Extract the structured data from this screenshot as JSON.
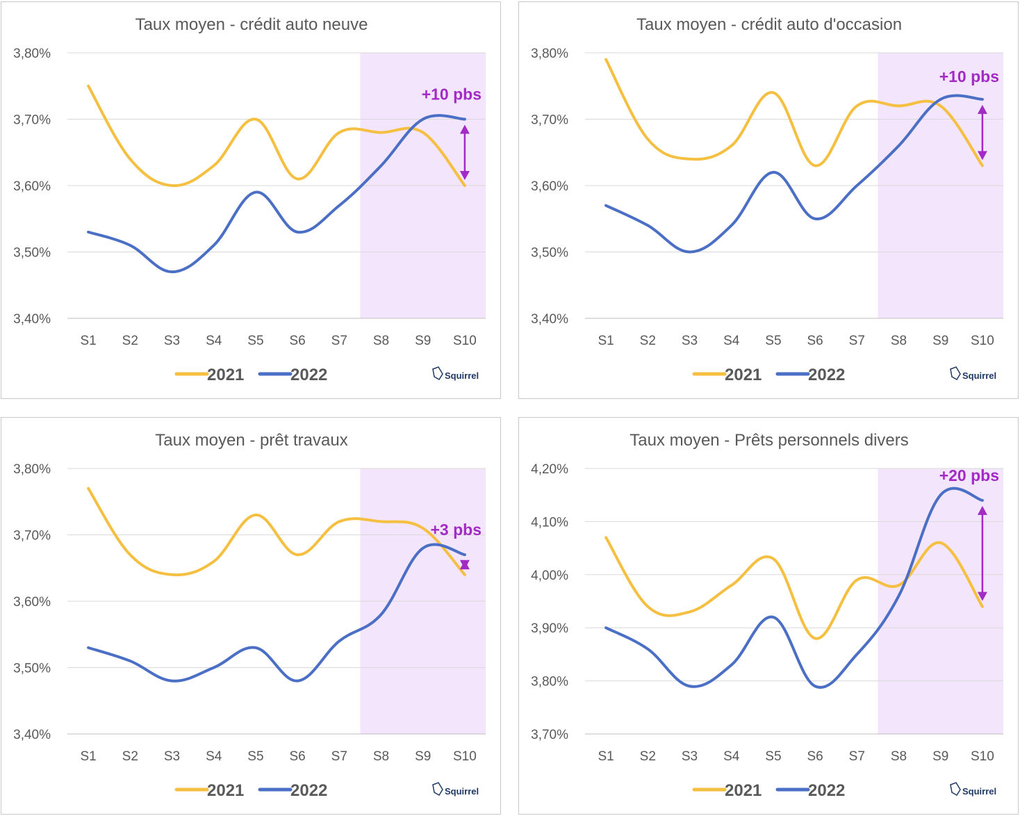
{
  "brand": "Squirrel",
  "colors": {
    "y2021": "#f5bf42",
    "y2022": "#4a6fc4",
    "highlight": "#f3e5fb",
    "annotation": "#a12bc4",
    "grid": "#d9d9d9",
    "text": "#595959"
  },
  "chart_data": [
    {
      "type": "line",
      "title": "Taux moyen - crédit auto neuve",
      "categories": [
        "S1",
        "S2",
        "S3",
        "S4",
        "S5",
        "S6",
        "S7",
        "S8",
        "S9",
        "S10"
      ],
      "yticks": [
        "3,40%",
        "3,50%",
        "3,60%",
        "3,70%",
        "3,80%"
      ],
      "ylim": [
        3.4,
        3.8
      ],
      "highlight_from": "S8",
      "annotation": "+10 pbs",
      "series": [
        {
          "name": "2021",
          "values": [
            3.75,
            3.64,
            3.6,
            3.63,
            3.7,
            3.61,
            3.68,
            3.68,
            3.68,
            3.6
          ]
        },
        {
          "name": "2022",
          "values": [
            3.53,
            3.51,
            3.47,
            3.51,
            3.59,
            3.53,
            3.57,
            3.63,
            3.7,
            3.7
          ]
        }
      ]
    },
    {
      "type": "line",
      "title": "Taux moyen - crédit auto d'occasion",
      "categories": [
        "S1",
        "S2",
        "S3",
        "S4",
        "S5",
        "S6",
        "S7",
        "S8",
        "S9",
        "S10"
      ],
      "yticks": [
        "3,40%",
        "3,50%",
        "3,60%",
        "3,70%",
        "3,80%"
      ],
      "ylim": [
        3.4,
        3.8
      ],
      "highlight_from": "S8",
      "annotation": "+10 pbs",
      "series": [
        {
          "name": "2021",
          "values": [
            3.79,
            3.67,
            3.64,
            3.66,
            3.74,
            3.63,
            3.72,
            3.72,
            3.72,
            3.63
          ]
        },
        {
          "name": "2022",
          "values": [
            3.57,
            3.54,
            3.5,
            3.54,
            3.62,
            3.55,
            3.6,
            3.66,
            3.73,
            3.73
          ]
        }
      ]
    },
    {
      "type": "line",
      "title": "Taux moyen - prêt travaux",
      "categories": [
        "S1",
        "S2",
        "S3",
        "S4",
        "S5",
        "S6",
        "S7",
        "S8",
        "S9",
        "S10"
      ],
      "yticks": [
        "3,40%",
        "3,50%",
        "3,60%",
        "3,70%",
        "3,80%"
      ],
      "ylim": [
        3.4,
        3.8
      ],
      "highlight_from": "S8",
      "annotation": "+3 pbs",
      "series": [
        {
          "name": "2021",
          "values": [
            3.77,
            3.67,
            3.64,
            3.66,
            3.73,
            3.67,
            3.72,
            3.72,
            3.71,
            3.64
          ]
        },
        {
          "name": "2022",
          "values": [
            3.53,
            3.51,
            3.48,
            3.5,
            3.53,
            3.48,
            3.54,
            3.58,
            3.68,
            3.67
          ]
        }
      ]
    },
    {
      "type": "line",
      "title": "Taux moyen - Prêts personnels divers",
      "categories": [
        "S1",
        "S2",
        "S3",
        "S4",
        "S5",
        "S6",
        "S7",
        "S8",
        "S9",
        "S10"
      ],
      "yticks": [
        "3,70%",
        "3,80%",
        "3,90%",
        "4,00%",
        "4,10%",
        "4,20%"
      ],
      "ylim": [
        3.7,
        4.2
      ],
      "highlight_from": "S8",
      "annotation": "+20 pbs",
      "series": [
        {
          "name": "2021",
          "values": [
            4.07,
            3.94,
            3.93,
            3.98,
            4.03,
            3.88,
            3.99,
            3.98,
            4.06,
            3.94
          ]
        },
        {
          "name": "2022",
          "values": [
            3.9,
            3.86,
            3.79,
            3.83,
            3.92,
            3.79,
            3.85,
            3.96,
            4.15,
            4.14
          ]
        }
      ]
    }
  ]
}
